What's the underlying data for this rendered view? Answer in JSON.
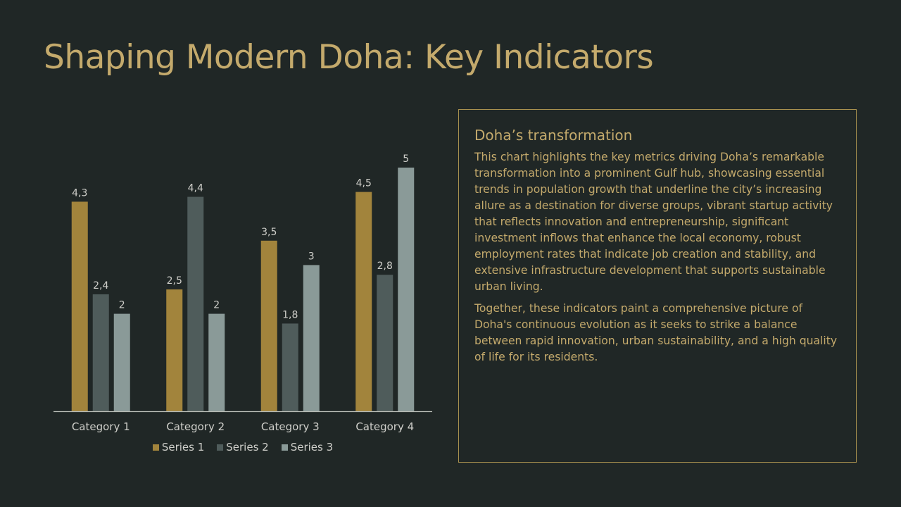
{
  "slide": {
    "title": "Shaping Modern Doha: Key Indicators"
  },
  "textbox": {
    "heading": "Doha’s transformation",
    "paragraphs": [
      "This chart highlights the key metrics driving Doha’s remarkable transformation into a prominent Gulf hub, showcasing essential trends in population growth that underline the city’s increasing allure as a destination for diverse groups, vibrant startup activity that reflects innovation and entrepreneurship, significant investment inflows that enhance the local economy, robust employment rates that indicate job creation and stability, and extensive infrastructure development that supports sustainable urban living.",
      "Together, these indicators paint a comprehensive picture of Doha's continuous evolution as it seeks to strike a balance between rapid innovation, urban sustainability, and a high quality of life for its residents."
    ]
  },
  "chart_data": {
    "type": "bar",
    "categories": [
      "Category 1",
      "Category 2",
      "Category 3",
      "Category 4"
    ],
    "series": [
      {
        "name": "Series 1",
        "values": [
          4.3,
          2.5,
          3.5,
          4.5
        ],
        "labels": [
          "4,3",
          "2,5",
          "3,5",
          "4,5"
        ],
        "color": "#a2843c"
      },
      {
        "name": "Series 2",
        "values": [
          2.4,
          4.4,
          1.8,
          2.8
        ],
        "labels": [
          "2,4",
          "4,4",
          "1,8",
          "2,8"
        ],
        "color": "#4f5c5b"
      },
      {
        "name": "Series 3",
        "values": [
          2,
          2,
          3,
          5
        ],
        "labels": [
          "2",
          "2",
          "3",
          "5"
        ],
        "color": "#8a9a98"
      }
    ],
    "ylim": [
      0,
      5
    ],
    "grid": false,
    "legend": "bottom",
    "colors": {
      "axis": "#b9bdb7",
      "tick_label": "#cfcfca",
      "data_label": "#cfcfca"
    }
  }
}
